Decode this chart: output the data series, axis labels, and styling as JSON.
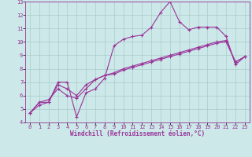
{
  "xlabel": "Windchill (Refroidissement éolien,°C)",
  "x_values": [
    0,
    1,
    2,
    3,
    4,
    5,
    6,
    7,
    8,
    9,
    10,
    11,
    12,
    13,
    14,
    15,
    16,
    17,
    18,
    19,
    20,
    21,
    22,
    23
  ],
  "line1": [
    4.7,
    5.5,
    5.5,
    7.0,
    7.0,
    4.4,
    6.2,
    6.5,
    7.3,
    9.7,
    10.2,
    10.4,
    10.5,
    11.1,
    12.2,
    13.0,
    11.5,
    10.9,
    11.1,
    11.1,
    11.1,
    10.4,
    8.3,
    8.9
  ],
  "line2": [
    4.7,
    5.5,
    5.7,
    6.5,
    6.0,
    5.8,
    6.5,
    7.2,
    7.5,
    7.6,
    7.9,
    8.1,
    8.3,
    8.5,
    8.7,
    8.9,
    9.1,
    9.3,
    9.5,
    9.7,
    9.9,
    10.0,
    8.5,
    8.9
  ],
  "line3": [
    4.7,
    5.3,
    5.5,
    6.8,
    6.5,
    6.0,
    6.8,
    7.2,
    7.5,
    7.7,
    8.0,
    8.2,
    8.4,
    8.6,
    8.8,
    9.0,
    9.2,
    9.4,
    9.6,
    9.8,
    10.0,
    10.1,
    8.5,
    8.9
  ],
  "line_color": "#993399",
  "background_color": "#cce8e8",
  "grid_color": "#aacccc",
  "spine_color": "#993399",
  "tick_label_color": "#993399",
  "xlabel_color": "#993399",
  "ylim": [
    4,
    13
  ],
  "xlim": [
    -0.5,
    23.5
  ],
  "yticks": [
    4,
    5,
    6,
    7,
    8,
    9,
    10,
    11,
    12,
    13
  ],
  "xticks": [
    0,
    1,
    2,
    3,
    4,
    5,
    6,
    7,
    8,
    9,
    10,
    11,
    12,
    13,
    14,
    15,
    16,
    17,
    18,
    19,
    20,
    21,
    22,
    23
  ],
  "marker": "+",
  "marker_size": 3.5,
  "line_width": 0.8,
  "tick_fontsize": 5.0,
  "xlabel_fontsize": 5.5
}
